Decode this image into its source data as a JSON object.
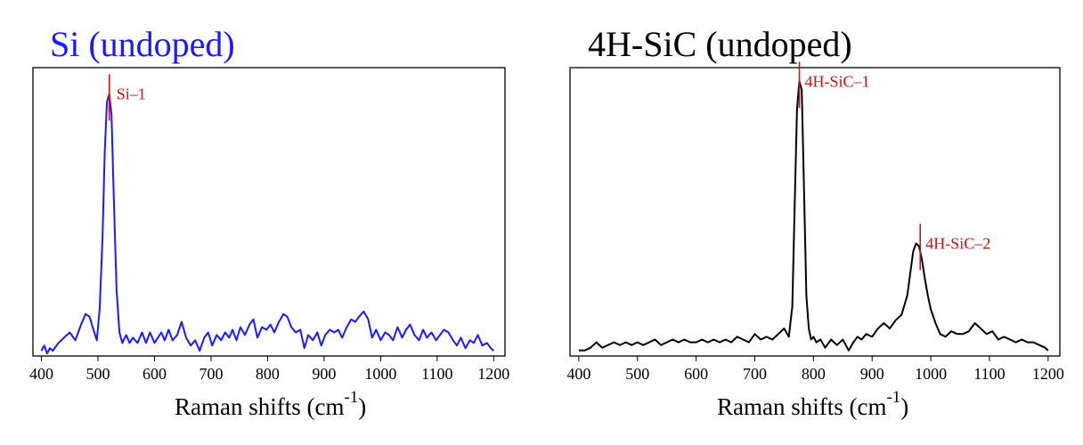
{
  "chart_data": [
    {
      "type": "line",
      "title": "Si (undoped)",
      "title_color": "#1a1aff",
      "line_color": "#1a1aff",
      "marker_color": "#cc1111",
      "xlabel_prefix": "Raman shifts (cm",
      "xlabel_sup": "-1",
      "xlabel_suffix": ")",
      "ylabel": "",
      "xlim": [
        385,
        1220
      ],
      "ylim": [
        0,
        1.1
      ],
      "xticks": [
        400,
        500,
        600,
        700,
        800,
        900,
        1000,
        1100,
        1200
      ],
      "grid": false,
      "series": [
        {
          "x": [
            400,
            405,
            410,
            415,
            420,
            430,
            440,
            450,
            460,
            470,
            478,
            485,
            492,
            498,
            503,
            508,
            512,
            516,
            520,
            524,
            528,
            533,
            538,
            543,
            550,
            556,
            562,
            570,
            578,
            585,
            592,
            600,
            606,
            612,
            618,
            625,
            632,
            640,
            648,
            656,
            664,
            672,
            680,
            688,
            695,
            702,
            710,
            718,
            725,
            732,
            738,
            745,
            752,
            760,
            768,
            775,
            782,
            790,
            798,
            805,
            812,
            820,
            828,
            835,
            842,
            850,
            858,
            865,
            872,
            880,
            888,
            895,
            902,
            910,
            918,
            925,
            932,
            940,
            948,
            955,
            962,
            970,
            978,
            985,
            992,
            1000,
            1008,
            1015,
            1022,
            1030,
            1038,
            1045,
            1052,
            1060,
            1068,
            1075,
            1082,
            1090,
            1098,
            1105,
            1112,
            1120,
            1128,
            1135,
            1142,
            1150,
            1158,
            1165,
            1172,
            1180,
            1188,
            1195,
            1200
          ],
          "y": [
            0.02,
            0.04,
            0.01,
            0.03,
            0.02,
            0.05,
            0.07,
            0.09,
            0.06,
            0.12,
            0.16,
            0.15,
            0.1,
            0.06,
            0.18,
            0.45,
            0.78,
            0.97,
            1.0,
            0.92,
            0.6,
            0.25,
            0.09,
            0.05,
            0.08,
            0.05,
            0.07,
            0.05,
            0.09,
            0.05,
            0.09,
            0.05,
            0.07,
            0.09,
            0.06,
            0.1,
            0.06,
            0.08,
            0.13,
            0.07,
            0.04,
            0.06,
            0.02,
            0.07,
            0.09,
            0.04,
            0.08,
            0.06,
            0.09,
            0.07,
            0.1,
            0.06,
            0.11,
            0.08,
            0.12,
            0.14,
            0.07,
            0.11,
            0.1,
            0.12,
            0.09,
            0.13,
            0.16,
            0.15,
            0.11,
            0.09,
            0.1,
            0.03,
            0.08,
            0.06,
            0.09,
            0.04,
            0.08,
            0.1,
            0.09,
            0.1,
            0.07,
            0.11,
            0.14,
            0.13,
            0.15,
            0.17,
            0.14,
            0.07,
            0.1,
            0.06,
            0.09,
            0.08,
            0.06,
            0.11,
            0.07,
            0.1,
            0.12,
            0.08,
            0.06,
            0.1,
            0.07,
            0.09,
            0.06,
            0.08,
            0.1,
            0.09,
            0.06,
            0.04,
            0.07,
            0.03,
            0.06,
            0.05,
            0.08,
            0.04,
            0.05,
            0.03,
            0.02
          ]
        }
      ],
      "annotations": [
        {
          "label": "Si–1",
          "x": 520,
          "y": 1.0
        }
      ]
    },
    {
      "type": "line",
      "title": "4H-SiC (undoped)",
      "title_color": "#000000",
      "line_color": "#000000",
      "marker_color": "#cc1111",
      "xlabel_prefix": "Raman shifts (cm",
      "xlabel_sup": "-1",
      "xlabel_suffix": ")",
      "ylabel": "",
      "xlim": [
        385,
        1220
      ],
      "ylim": [
        0,
        1.05
      ],
      "xticks": [
        400,
        500,
        600,
        700,
        800,
        900,
        1000,
        1100,
        1200
      ],
      "grid": false,
      "series": [
        {
          "x": [
            400,
            410,
            420,
            430,
            440,
            450,
            460,
            470,
            480,
            490,
            500,
            510,
            520,
            530,
            540,
            550,
            560,
            570,
            580,
            590,
            600,
            610,
            620,
            630,
            640,
            650,
            660,
            670,
            680,
            690,
            700,
            710,
            720,
            730,
            740,
            750,
            758,
            764,
            768,
            772,
            776,
            780,
            784,
            788,
            792,
            796,
            800,
            805,
            812,
            820,
            830,
            840,
            850,
            860,
            868,
            875,
            882,
            890,
            900,
            910,
            920,
            930,
            940,
            950,
            960,
            965,
            970,
            975,
            980,
            985,
            990,
            995,
            1000,
            1008,
            1016,
            1025,
            1035,
            1045,
            1055,
            1065,
            1075,
            1085,
            1095,
            1105,
            1115,
            1125,
            1135,
            1145,
            1155,
            1165,
            1175,
            1185,
            1195,
            1200
          ],
          "y": [
            0.02,
            0.02,
            0.03,
            0.05,
            0.03,
            0.04,
            0.05,
            0.04,
            0.05,
            0.04,
            0.05,
            0.04,
            0.05,
            0.06,
            0.04,
            0.05,
            0.06,
            0.05,
            0.06,
            0.05,
            0.05,
            0.06,
            0.05,
            0.06,
            0.05,
            0.06,
            0.05,
            0.07,
            0.06,
            0.05,
            0.08,
            0.06,
            0.07,
            0.06,
            0.08,
            0.1,
            0.07,
            0.18,
            0.55,
            0.9,
            1.0,
            0.97,
            0.6,
            0.22,
            0.1,
            0.06,
            0.07,
            0.05,
            0.06,
            0.03,
            0.06,
            0.04,
            0.06,
            0.02,
            0.05,
            0.07,
            0.06,
            0.08,
            0.07,
            0.1,
            0.12,
            0.1,
            0.13,
            0.15,
            0.22,
            0.3,
            0.38,
            0.41,
            0.4,
            0.35,
            0.28,
            0.22,
            0.17,
            0.12,
            0.08,
            0.07,
            0.09,
            0.08,
            0.08,
            0.09,
            0.12,
            0.1,
            0.08,
            0.09,
            0.06,
            0.07,
            0.06,
            0.05,
            0.06,
            0.05,
            0.05,
            0.04,
            0.03,
            0.02
          ]
        }
      ],
      "annotations": [
        {
          "label": "4H-SiC–1",
          "x": 776,
          "y": 1.0
        },
        {
          "label": "4H-SiC–2",
          "x": 982,
          "y": 0.41
        }
      ]
    }
  ]
}
